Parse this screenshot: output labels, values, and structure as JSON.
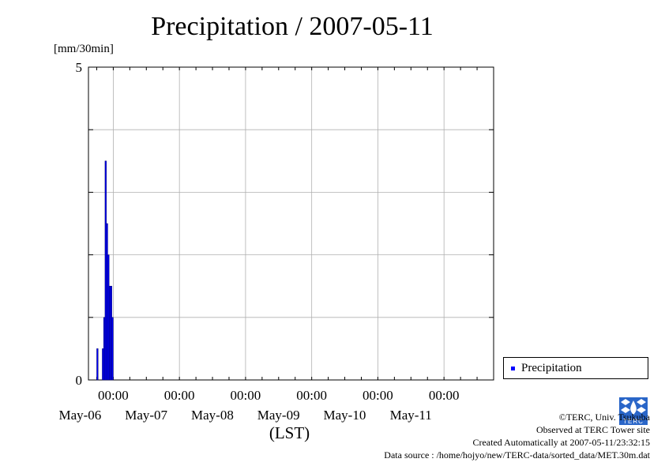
{
  "title": "Precipitation / 2007-05-11",
  "unit_label": "[mm/30min]",
  "legend": {
    "label": "Precipitation",
    "color": "#0000ff"
  },
  "credits": {
    "copyright": "©TERC, Univ. Tsukuba",
    "site": "Observed at TERC Tower site",
    "created": "Created Automatically at 2007-05-11/23:32:15",
    "source": "Data source : /home/hojyo/new/TERC-data/sorted_data/MET.30m.dat"
  },
  "logo": {
    "text": "TERC",
    "icon": "terc-logo-icon"
  },
  "chart_data": {
    "type": "bar",
    "title": "Precipitation / 2007-05-11",
    "ylabel": "[mm/30min]",
    "xlabel": "(LST)",
    "ylim": [
      0,
      5
    ],
    "y_tick_labels": [
      "0",
      "5"
    ],
    "x_range": [
      "2007-05-05 15:00",
      "2007-05-11 18:00"
    ],
    "x_tick_labels": [
      {
        "time": "00:00",
        "date": "May-06"
      },
      {
        "time": "00:00",
        "date": "May-07"
      },
      {
        "time": "00:00",
        "date": "May-08"
      },
      {
        "time": "00:00",
        "date": "May-09"
      },
      {
        "time": "00:00",
        "date": "May-10"
      },
      {
        "time": "00:00",
        "date": "May-11"
      }
    ],
    "grid": true,
    "legend_position": "bottom-right",
    "series": [
      {
        "name": "Precipitation",
        "color": "#0000ff",
        "points": [
          {
            "t": "2007-05-05 18:30",
            "v": 0.5
          },
          {
            "t": "2007-05-05 20:30",
            "v": 0.5
          },
          {
            "t": "2007-05-05 21:00",
            "v": 1.0
          },
          {
            "t": "2007-05-05 21:30",
            "v": 3.5
          },
          {
            "t": "2007-05-05 22:00",
            "v": 2.5
          },
          {
            "t": "2007-05-05 22:30",
            "v": 2.0
          },
          {
            "t": "2007-05-05 23:00",
            "v": 1.5
          },
          {
            "t": "2007-05-05 23:30",
            "v": 1.5
          },
          {
            "t": "2007-05-06 00:00",
            "v": 1.0
          }
        ]
      }
    ]
  }
}
